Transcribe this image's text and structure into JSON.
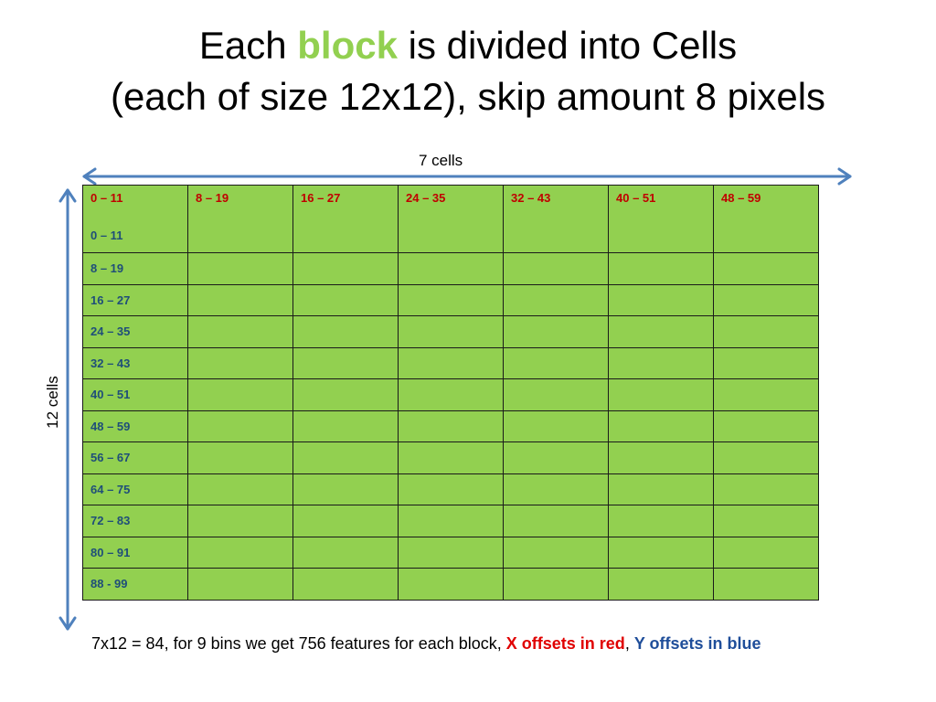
{
  "slide": {
    "title_line1_a": "Each ",
    "title_line1_accent": "block",
    "title_line1_b": " is divided into Cells",
    "title_line2": "(each of size 12x12), skip amount 8 pixels",
    "cols_label": "7 cells",
    "rows_label": "12 cells",
    "caption_main": "7x12 = 84, for 9 bins we get 756 features for each block, ",
    "caption_red": "X offsets in red",
    "caption_sep": ", ",
    "caption_blue": "Y offsets in blue"
  },
  "grid": {
    "x_offsets": [
      "0 – 11",
      "8 – 19",
      "16 – 27",
      "24 – 35",
      "32 – 43",
      "40 – 51",
      "48 – 59"
    ],
    "y_offsets": [
      "0 – 11",
      "8 – 19",
      "16 – 27",
      "24 – 35",
      "32 – 43",
      "40 – 51",
      "48 – 59",
      "56 – 67",
      "64 – 75",
      "72 – 83",
      "80 – 91",
      "88 - 99"
    ]
  },
  "colors": {
    "accent": "#92d050",
    "cell_fill": "#92d050",
    "x_offset": "#c00000",
    "y_offset": "#1f4e79",
    "arrow": "#4f81bd"
  }
}
